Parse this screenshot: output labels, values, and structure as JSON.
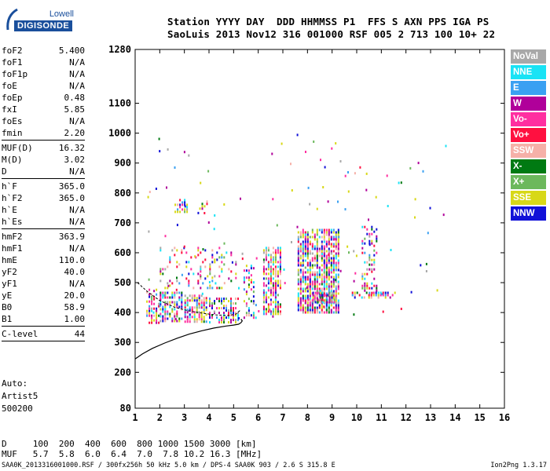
{
  "logo": {
    "line1": "Lowell",
    "line2": "DIGISONDE"
  },
  "header": {
    "line1": "Station YYYY DAY  DDD HHMMSS P1  FFS S AXN PPS IGA PS",
    "line2": "SaoLuis 2013 Nov12 316 001000 RSF 005 2 713 100 10+ 22"
  },
  "params": {
    "group1": [
      {
        "name": "foF2",
        "value": "5.400"
      },
      {
        "name": "foF1",
        "value": "N/A"
      },
      {
        "name": "foF1p",
        "value": "N/A"
      },
      {
        "name": "foE",
        "value": "N/A"
      },
      {
        "name": "foEp",
        "value": "0.48"
      },
      {
        "name": "fxI",
        "value": "5.85"
      },
      {
        "name": "foEs",
        "value": "N/A"
      },
      {
        "name": "fmin",
        "value": "2.20"
      }
    ],
    "group2": [
      {
        "name": "MUF(D)",
        "value": "16.32"
      },
      {
        "name": "M(D)",
        "value": "3.02"
      },
      {
        "name": "D",
        "value": "N/A"
      }
    ],
    "group3": [
      {
        "name": "h`F",
        "value": "365.0"
      },
      {
        "name": "h`F2",
        "value": "365.0"
      },
      {
        "name": "h`E",
        "value": "N/A"
      },
      {
        "name": "h`Es",
        "value": "N/A"
      }
    ],
    "group4": [
      {
        "name": "hmF2",
        "value": "363.9"
      },
      {
        "name": "hmF1",
        "value": "N/A"
      },
      {
        "name": "hmE",
        "value": "110.0"
      },
      {
        "name": "yF2",
        "value": "40.0"
      },
      {
        "name": "yF1",
        "value": "N/A"
      },
      {
        "name": "yE",
        "value": "20.0"
      },
      {
        "name": "B0",
        "value": "58.9"
      },
      {
        "name": "B1",
        "value": "1.00"
      }
    ],
    "group5": [
      {
        "name": "C-level",
        "value": "44"
      }
    ]
  },
  "auto": {
    "line1": "Auto:",
    "line2": "Artist5",
    "line3": "500200"
  },
  "legend": [
    {
      "label": "NoVal",
      "color": "#a8a8a8"
    },
    {
      "label": "NNE",
      "color": "#19e3f5"
    },
    {
      "label": "E",
      "color": "#3aa0f2"
    },
    {
      "label": "W",
      "color": "#b0009a"
    },
    {
      "label": "Vo-",
      "color": "#ff2fa0"
    },
    {
      "label": "Vo+",
      "color": "#ff1040"
    },
    {
      "label": "SSW",
      "color": "#f6b0a8"
    },
    {
      "label": "X-",
      "color": "#007a12"
    },
    {
      "label": "X+",
      "color": "#6cb85c"
    },
    {
      "label": "SSE",
      "color": "#d8d818"
    },
    {
      "label": "NNW",
      "color": "#1010d8"
    }
  ],
  "footer": {
    "d_line": "D     100  200  400  600  800 1000 1500 3000 [km]",
    "muf_line": "MUF   5.7  5.8  6.0  6.4  7.0  7.8 10.2 16.3 [MHz]",
    "file_line": "SAA0K_2013316001000.RSF / 300fx256h 50 kHz 5.0 km / DPS-4 SAA0K 903 / 2.6 S 315.8 E",
    "version": "Ion2Png 1.3.17"
  },
  "chart_data": {
    "type": "scatter",
    "title": "",
    "xlabel": "",
    "ylabel": "",
    "x_ticks": [
      1,
      2,
      3,
      4,
      5,
      6,
      7,
      8,
      9,
      10,
      11,
      12,
      13,
      14,
      15,
      16
    ],
    "y_ticks": [
      80,
      200,
      300,
      400,
      500,
      600,
      700,
      800,
      900,
      1000,
      1100,
      1280
    ],
    "xlim": [
      1,
      16
    ],
    "ylim": [
      80,
      1280
    ],
    "grid": false,
    "legend_position": "right",
    "profile_curve": {
      "name": "",
      "x": [
        1.0,
        1.3,
        1.7,
        2.2,
        2.7,
        3.2,
        3.7,
        4.2,
        4.7,
        5.0,
        5.2,
        5.3,
        5.35,
        5.3
      ],
      "y": [
        245,
        262,
        280,
        298,
        314,
        328,
        339,
        348,
        355,
        358,
        361,
        366,
        372,
        378
      ]
    },
    "trace_curve": {
      "name": "",
      "x": [
        1.1,
        1.5,
        2.0,
        2.6,
        3.2,
        3.8,
        4.3,
        4.8,
        5.1,
        5.3
      ],
      "y": [
        500,
        470,
        440,
        418,
        405,
        397,
        392,
        390,
        395,
        410
      ]
    },
    "clusters": [
      {
        "x": [
          1.45,
          2.0
        ],
        "y": [
          365,
          480
        ],
        "density": 0.55
      },
      {
        "x": [
          2.0,
          3.0
        ],
        "y": [
          365,
          470
        ],
        "density": 0.7
      },
      {
        "x": [
          3.0,
          4.0
        ],
        "y": [
          365,
          460
        ],
        "density": 0.7
      },
      {
        "x": [
          4.0,
          5.2
        ],
        "y": [
          365,
          450
        ],
        "density": 0.55
      },
      {
        "x": [
          2.0,
          5.2
        ],
        "y": [
          480,
          620
        ],
        "density": 0.18
      },
      {
        "x": [
          2.6,
          3.2
        ],
        "y": [
          730,
          780
        ],
        "density": 0.35
      },
      {
        "x": [
          3.6,
          4.0
        ],
        "y": [
          740,
          775
        ],
        "density": 0.35
      },
      {
        "x": [
          5.4,
          5.9
        ],
        "y": [
          380,
          560
        ],
        "density": 0.35
      },
      {
        "x": [
          6.2,
          7.0
        ],
        "y": [
          390,
          620
        ],
        "density": 0.7
      },
      {
        "x": [
          7.6,
          9.3
        ],
        "y": [
          400,
          680
        ],
        "density": 0.8
      },
      {
        "x": [
          8.2,
          9.2
        ],
        "y": [
          430,
          470
        ],
        "density": 0.8
      },
      {
        "x": [
          10.2,
          10.9
        ],
        "y": [
          460,
          690
        ],
        "density": 0.35
      },
      {
        "x": [
          9.8,
          11.6
        ],
        "y": [
          445,
          470
        ],
        "density": 0.45
      }
    ]
  }
}
